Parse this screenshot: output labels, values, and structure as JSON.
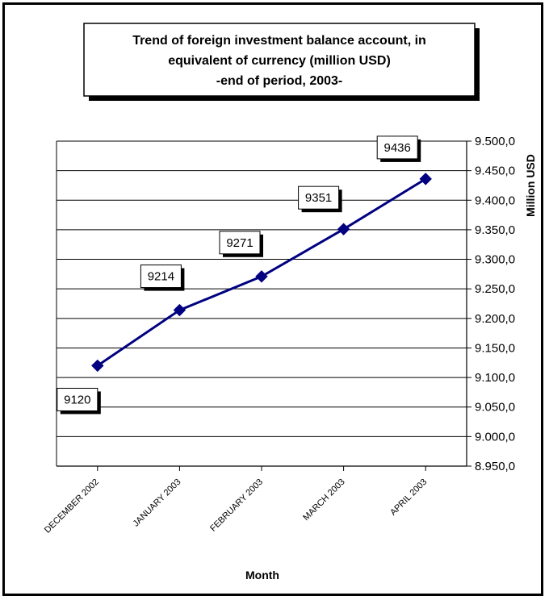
{
  "chart_data": {
    "type": "line",
    "title_lines": [
      "Trend of foreign investment balance account, in",
      "equivalent of currency (million USD)",
      "-end of period, 2003-"
    ],
    "xlabel": "Month",
    "ylabel": "Million USD",
    "categories": [
      "DECEMBER 2002",
      "JANUARY 2003",
      "FEBRUARY 2003",
      "MARCH 2003",
      "APRIL 2003"
    ],
    "series": [
      {
        "values": [
          9120,
          9214,
          9271,
          9351,
          9436
        ],
        "color": "#000080"
      }
    ],
    "data_labels": [
      "9120",
      "9214",
      "9271",
      "9351",
      "9436"
    ],
    "y_ticks": [
      "8.950,0",
      "9.000,0",
      "9.050,0",
      "9.100,0",
      "9.150,0",
      "9.200,0",
      "9.250,0",
      "9.300,0",
      "9.350,0",
      "9.400,0",
      "9.450,0",
      "9.500,0"
    ],
    "ylim": [
      8950,
      9500
    ],
    "y_step": 50,
    "grid": true,
    "legend": "none",
    "marker": "diamond"
  }
}
